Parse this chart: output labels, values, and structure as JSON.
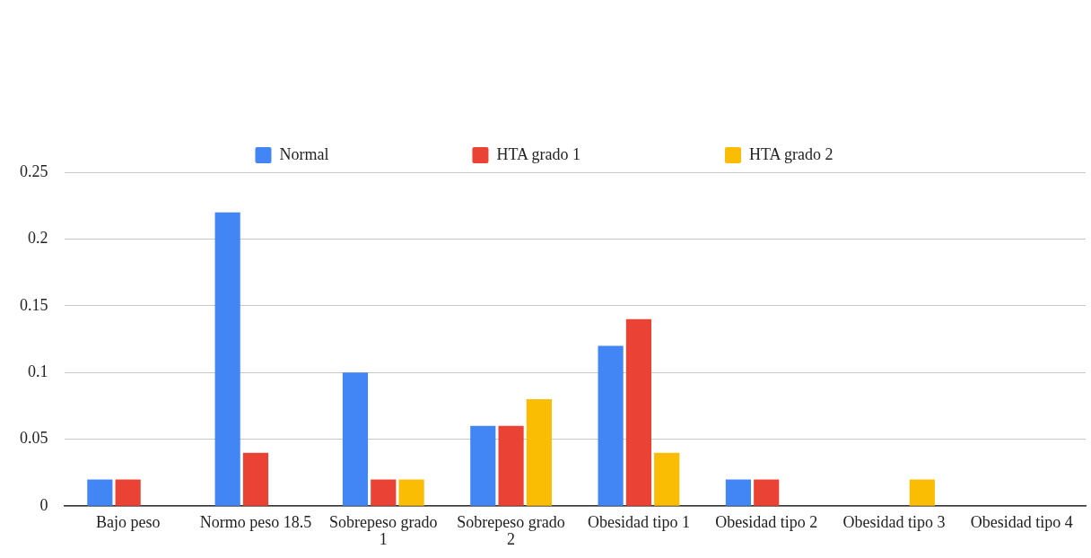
{
  "chart_data": {
    "type": "bar",
    "categories": [
      "Bajo peso",
      "Normo peso 18.5",
      "Sobrepeso grado 1",
      "Sobrepeso grado 2",
      "Obesidad tipo 1",
      "Obesidad tipo 2",
      "Obesidad tipo 3",
      "Obesidad tipo 4"
    ],
    "series": [
      {
        "name": "Normal",
        "color": "#4285f4",
        "values": [
          0.02,
          0.22,
          0.1,
          0.06,
          0.12,
          0.02,
          0,
          0
        ]
      },
      {
        "name": "HTA grado 1",
        "color": "#ea4335",
        "values": [
          0.02,
          0.04,
          0.02,
          0.06,
          0.14,
          0.02,
          0,
          0
        ]
      },
      {
        "name": "HTA grado 2",
        "color": "#fbbc04",
        "values": [
          0,
          0,
          0.02,
          0.08,
          0.04,
          0,
          0.02,
          0
        ]
      }
    ],
    "ylim": [
      0,
      0.25
    ],
    "yticks": [
      0,
      0.05,
      0.1,
      0.15,
      0.2,
      0.25
    ],
    "grid": "y",
    "legend": "top"
  }
}
